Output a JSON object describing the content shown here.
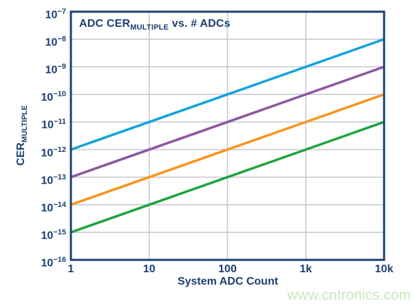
{
  "page": {
    "background": "#ffffff",
    "watermark": {
      "text": "www.cntronics.com",
      "color": "#c9e8ba"
    }
  },
  "chart_data": {
    "type": "line",
    "title": {
      "pre": "ADC CER",
      "sub": "MULTIPLE",
      "post": " vs. # ADCs"
    },
    "xlabel": "System ADC Count",
    "ylabel": {
      "pre": "CER",
      "sub": "MULTIPLE"
    },
    "x_scale": "log",
    "y_scale": "log",
    "grid": "major-only",
    "legend": "none",
    "x_range": [
      1,
      10000
    ],
    "y_range": [
      1e-16,
      1e-07
    ],
    "x_tick_labels": [
      "1",
      "10",
      "100",
      "1k",
      "10k"
    ],
    "x_tick_values": [
      1,
      10,
      100,
      1000,
      10000
    ],
    "y_tick_exponents": [
      "−7",
      "−8",
      "−9",
      "−10",
      "−11",
      "−12",
      "−13",
      "−14",
      "−15",
      "−16"
    ],
    "y_tick_values": [
      1e-07,
      1e-08,
      1e-09,
      1e-10,
      1e-11,
      1e-12,
      1e-13,
      1e-14,
      1e-15,
      1e-16
    ],
    "colors": {
      "axis_frame": "#1b3f72",
      "text": "#1b3f72",
      "grid": "#c7c9d4"
    },
    "series": [
      {
        "name": "cer-per-adc-1e-12",
        "color": "#15a3da",
        "points": [
          {
            "x": 1,
            "y": 1e-12
          },
          {
            "x": 10000,
            "y": 1e-08
          }
        ]
      },
      {
        "name": "cer-per-adc-1e-13",
        "color": "#8e57a0",
        "points": [
          {
            "x": 1,
            "y": 1e-13
          },
          {
            "x": 10000,
            "y": 1e-09
          }
        ]
      },
      {
        "name": "cer-per-adc-1e-14",
        "color": "#f7941e",
        "points": [
          {
            "x": 1,
            "y": 1e-14
          },
          {
            "x": 10000,
            "y": 1e-10
          }
        ]
      },
      {
        "name": "cer-per-adc-1e-15",
        "color": "#1ea43e",
        "points": [
          {
            "x": 1,
            "y": 1e-15
          },
          {
            "x": 10000,
            "y": 1e-11
          }
        ]
      }
    ]
  }
}
